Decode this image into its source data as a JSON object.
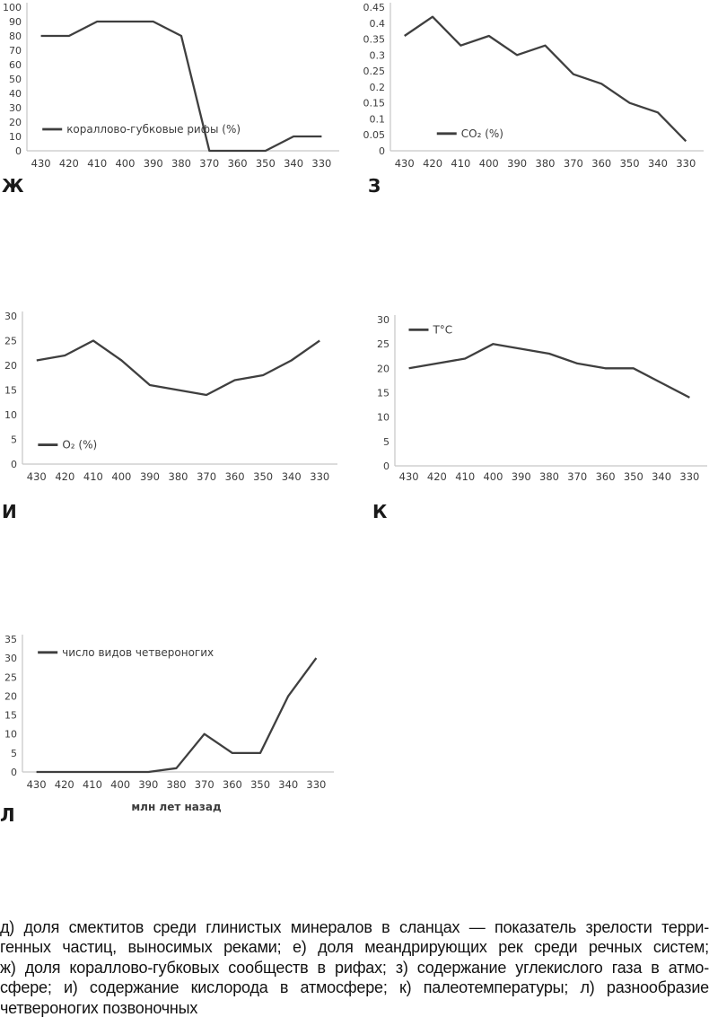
{
  "colors": {
    "line": "#3f3f3f",
    "axis": "#c6c6c6",
    "tick_text": "#3c3c3c"
  },
  "chart_data": [
    {
      "type": "line",
      "letter": "Ж",
      "legend": "кораллово-губковые рифы (%)",
      "x": [
        430,
        420,
        410,
        400,
        390,
        380,
        370,
        360,
        350,
        340,
        330
      ],
      "values": [
        80,
        80,
        90,
        90,
        90,
        80,
        0,
        0,
        0,
        10,
        10
      ],
      "ylim": [
        0,
        100
      ],
      "ytick_step": 10,
      "grid": false,
      "legend_pos": {
        "fx": 0.05,
        "fy": 0.85
      },
      "xlabel": ""
    },
    {
      "type": "line",
      "letter": "З",
      "legend": "CO₂ (%)",
      "x": [
        430,
        420,
        410,
        400,
        390,
        380,
        370,
        360,
        350,
        340,
        330
      ],
      "values": [
        0.36,
        0.42,
        0.33,
        0.36,
        0.3,
        0.33,
        0.24,
        0.21,
        0.15,
        0.12,
        0.03
      ],
      "ylim": [
        0,
        0.45
      ],
      "ytick_step": 0.05,
      "grid": false,
      "legend_pos": {
        "fx": 0.15,
        "fy": 0.88
      },
      "xlabel": ""
    },
    {
      "type": "line",
      "letter": "И",
      "legend": "O₂ (%)",
      "x": [
        430,
        420,
        410,
        400,
        390,
        380,
        370,
        360,
        350,
        340,
        330
      ],
      "values": [
        21,
        22,
        25,
        21,
        16,
        15,
        14,
        17,
        18,
        21,
        25
      ],
      "ylim": [
        0,
        30
      ],
      "ytick_step": 5,
      "grid": false,
      "legend_pos": {
        "fx": 0.05,
        "fy": 0.87
      },
      "xlabel": ""
    },
    {
      "type": "line",
      "letter": "К",
      "legend": "Т°С",
      "x": [
        430,
        420,
        410,
        400,
        390,
        380,
        370,
        360,
        350,
        340,
        330
      ],
      "values": [
        20,
        21,
        22,
        25,
        24,
        23,
        21,
        20,
        20,
        17,
        14
      ],
      "ylim": [
        0,
        30
      ],
      "ytick_step": 5,
      "grid": false,
      "legend_pos": {
        "fx": 0.045,
        "fy": 0.07
      },
      "xlabel": ""
    },
    {
      "type": "line",
      "letter": "Л",
      "legend": "число видов четвероногих",
      "x": [
        430,
        420,
        410,
        400,
        390,
        380,
        370,
        360,
        350,
        340,
        330
      ],
      "values": [
        0,
        0,
        0,
        0,
        0,
        1,
        10,
        5,
        5,
        20,
        30
      ],
      "ylim": [
        0,
        35
      ],
      "ytick_step": 5,
      "grid": false,
      "legend_pos": {
        "fx": 0.05,
        "fy": 0.1
      },
      "xlabel": "млн лет назад"
    }
  ],
  "caption": {
    "lines": [
      "д) доля смектитов среди глинистых минералов в сланцах — показатель зрелости терри-",
      "генных частиц, выносимых реками; е) доля меандрирующих рек среди речных систем;",
      "ж) доля кораллово-губковых сообществ в рифах; з) содержание углекислого газа в атмо-",
      "сфере; и) содержание кислорода в атмосфере; к) палеотемпературы; л) разнообразие",
      "четвероногих позвоночных"
    ]
  }
}
